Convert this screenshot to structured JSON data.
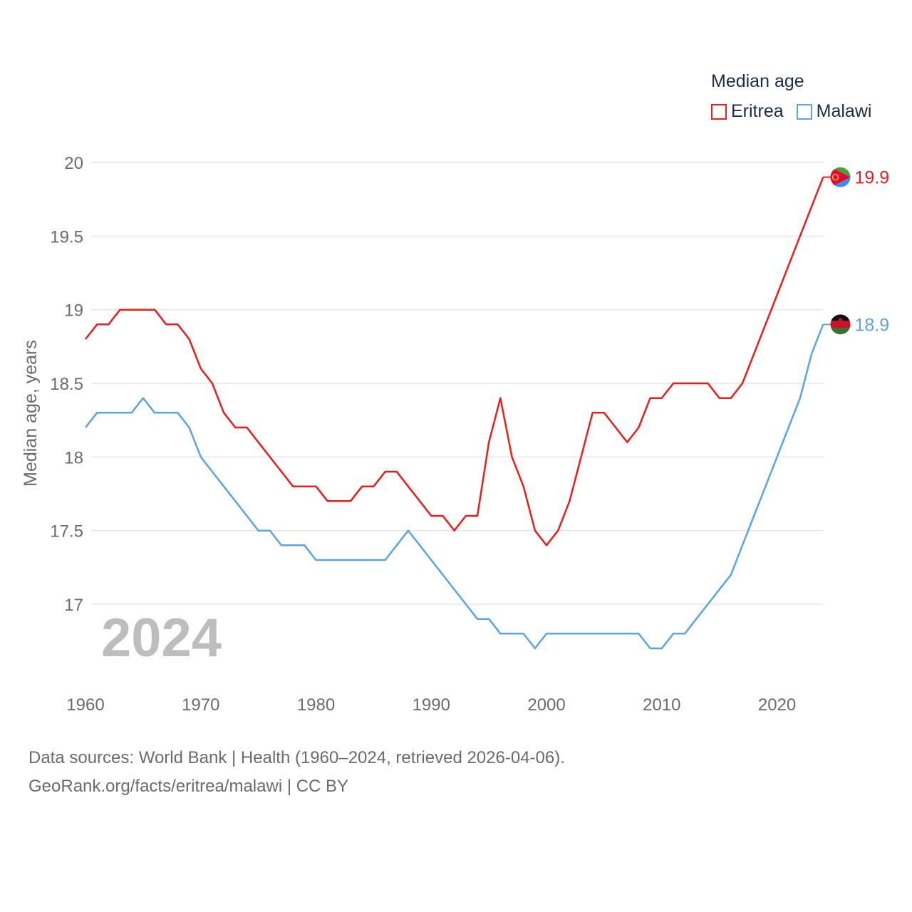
{
  "legend": {
    "title": "Median age",
    "items": [
      {
        "name": "Eritrea",
        "color": "#ee1c1c"
      },
      {
        "name": "Malawi",
        "color": "#5aa4e8"
      }
    ]
  },
  "year_label": "2024",
  "footer": {
    "line1": "Data sources: World Bank | Health (1960–2024, retrieved 2026-04-06).",
    "line2": "GeoRank.org/facts/eritrea/malawi | CC BY"
  },
  "chart_data": {
    "type": "line",
    "title": "",
    "xlabel": "",
    "ylabel": "Median age, years",
    "xlim": [
      1960,
      2025.9
    ],
    "ylim": [
      16.55,
      20
    ],
    "yticks": [
      17,
      17.5,
      18,
      18.5,
      19,
      19.5,
      20
    ],
    "ytick_labels": [
      "17",
      "17.5",
      "18",
      "18.5",
      "19",
      "19.5",
      "20"
    ],
    "xticks": [
      1960,
      1970,
      1980,
      1990,
      2000,
      2010,
      2020
    ],
    "xtick_labels": [
      "1960",
      "1970",
      "1980",
      "1990",
      "2000",
      "2010",
      "2020"
    ],
    "grid": true,
    "x": [
      1960,
      1961,
      1962,
      1963,
      1964,
      1965,
      1966,
      1967,
      1968,
      1969,
      1970,
      1971,
      1972,
      1973,
      1974,
      1975,
      1976,
      1977,
      1978,
      1979,
      1980,
      1981,
      1982,
      1983,
      1984,
      1985,
      1986,
      1987,
      1988,
      1989,
      1990,
      1991,
      1992,
      1993,
      1994,
      1995,
      1996,
      1997,
      1998,
      1999,
      2000,
      2001,
      2002,
      2003,
      2004,
      2005,
      2006,
      2007,
      2008,
      2009,
      2010,
      2011,
      2012,
      2013,
      2014,
      2015,
      2016,
      2017,
      2018,
      2019,
      2020,
      2021,
      2022,
      2023,
      2024
    ],
    "series": [
      {
        "name": "Eritrea",
        "color": "#ee1c1c",
        "end_label": "19.9",
        "values": [
          18.8,
          18.9,
          18.9,
          19.0,
          19.0,
          19.0,
          19.0,
          18.9,
          18.9,
          18.8,
          18.6,
          18.5,
          18.3,
          18.2,
          18.2,
          18.1,
          18.0,
          17.9,
          17.8,
          17.8,
          17.8,
          17.7,
          17.7,
          17.7,
          17.8,
          17.8,
          17.9,
          17.9,
          17.8,
          17.7,
          17.6,
          17.6,
          17.5,
          17.6,
          17.6,
          18.1,
          18.4,
          18.0,
          17.8,
          17.5,
          17.4,
          17.5,
          17.7,
          18.0,
          18.3,
          18.3,
          18.2,
          18.1,
          18.2,
          18.4,
          18.4,
          18.5,
          18.5,
          18.5,
          18.5,
          18.4,
          18.4,
          18.5,
          18.7,
          18.9,
          19.1,
          19.3,
          19.5,
          19.7,
          19.9
        ]
      },
      {
        "name": "Malawi",
        "color": "#5aa4e8",
        "end_label": "18.9",
        "values": [
          18.2,
          18.3,
          18.3,
          18.3,
          18.3,
          18.4,
          18.3,
          18.3,
          18.3,
          18.2,
          18.0,
          17.9,
          17.8,
          17.7,
          17.6,
          17.5,
          17.5,
          17.4,
          17.4,
          17.4,
          17.3,
          17.3,
          17.3,
          17.3,
          17.3,
          17.3,
          17.3,
          17.4,
          17.5,
          17.4,
          17.3,
          17.2,
          17.1,
          17.0,
          16.9,
          16.9,
          16.8,
          16.8,
          16.8,
          16.7,
          16.8,
          16.8,
          16.8,
          16.8,
          16.8,
          16.8,
          16.8,
          16.8,
          16.8,
          16.7,
          16.7,
          16.8,
          16.8,
          16.9,
          17.0,
          17.1,
          17.2,
          17.4,
          17.6,
          17.8,
          18.0,
          18.2,
          18.4,
          18.7,
          18.9
        ]
      }
    ]
  }
}
